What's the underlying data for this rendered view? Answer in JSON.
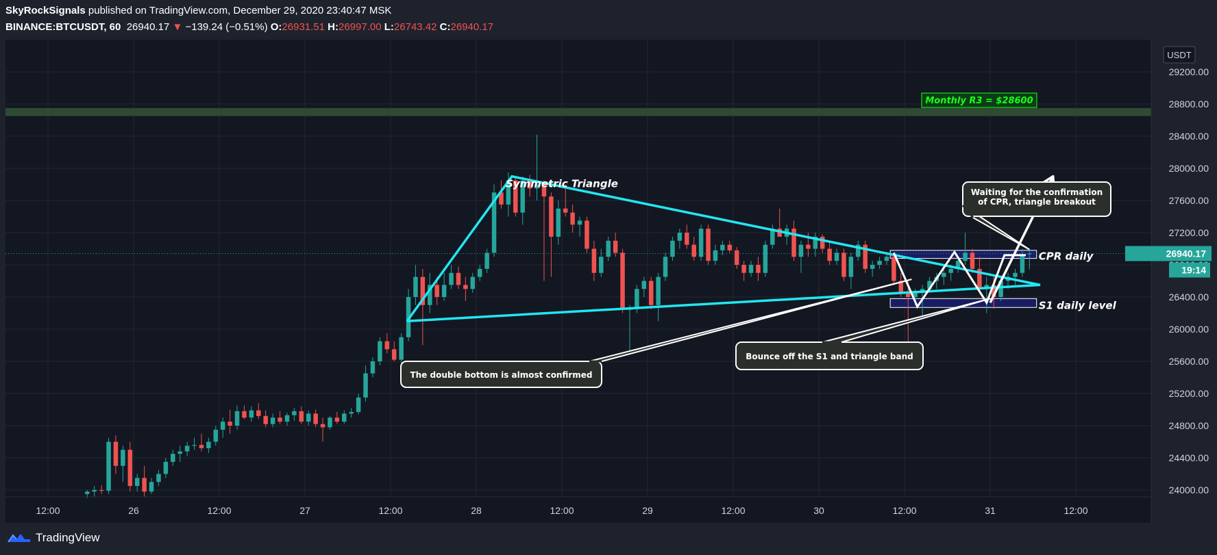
{
  "header": {
    "publisher": "SkyRockSignals",
    "published_text": "published on TradingView.com, December 29, 2020 23:40:47 MSK",
    "symbol": "BINANCE:BTCUSDT, 60",
    "last": "26940.17",
    "change_arrow": "▼",
    "change": "−139.24 (−0.51%)",
    "o_label": "O:",
    "o_value": "26931.51",
    "h_label": "H:",
    "h_value": "26997.00",
    "l_label": "L:",
    "l_value": "26743.42",
    "c_label": "C:",
    "c_value": "26940.17"
  },
  "footer": {
    "brand": "TradingView"
  },
  "colors": {
    "background": "#131722",
    "frame": "#1e222d",
    "up": "#26a69a",
    "down": "#ef5350",
    "triangle": "#22e6f0",
    "band": "#2e4a33",
    "box": "#1a1f6e",
    "annotation_white": "#ffffff",
    "green_label": "#19ff19"
  },
  "chart_data": {
    "type": "candlestick",
    "currency_label": "USDT",
    "x_ticks": [
      "12:00",
      "26",
      "12:00",
      "27",
      "12:00",
      "28",
      "12:00",
      "29",
      "12:00",
      "30",
      "12:00",
      "31",
      "12:00"
    ],
    "y_ticks": [
      "24000.00",
      "24400.00",
      "24800.00",
      "25200.00",
      "25600.00",
      "26000.00",
      "26400.00",
      "26800.00",
      "27200.00",
      "27600.00",
      "28000.00",
      "28400.00",
      "28800.00",
      "29200.00"
    ],
    "ylim": [
      23900,
      29500
    ],
    "x_range_hours": [
      0,
      144
    ],
    "last_price": {
      "value": 26940.17,
      "label": "26940.17",
      "countdown": "19:14"
    },
    "candles": [
      {
        "t": 5.5,
        "o": 23950,
        "h": 24000,
        "l": 23900,
        "c": 23980
      },
      {
        "t": 6.5,
        "o": 23980,
        "h": 24050,
        "l": 23920,
        "c": 24000
      },
      {
        "t": 7.5,
        "o": 24000,
        "h": 24060,
        "l": 23950,
        "c": 23990
      },
      {
        "t": 8.5,
        "o": 23990,
        "h": 24650,
        "l": 23950,
        "c": 24600
      },
      {
        "t": 9.5,
        "o": 24600,
        "h": 24680,
        "l": 24200,
        "c": 24300
      },
      {
        "t": 10.5,
        "o": 24300,
        "h": 24550,
        "l": 24100,
        "c": 24500
      },
      {
        "t": 11.5,
        "o": 24500,
        "h": 24600,
        "l": 23980,
        "c": 24050
      },
      {
        "t": 12.5,
        "o": 24050,
        "h": 24200,
        "l": 23980,
        "c": 24150
      },
      {
        "t": 13.5,
        "o": 24150,
        "h": 24300,
        "l": 23920,
        "c": 23980
      },
      {
        "t": 14.5,
        "o": 23980,
        "h": 24150,
        "l": 23950,
        "c": 24100
      },
      {
        "t": 15.5,
        "o": 24100,
        "h": 24250,
        "l": 24050,
        "c": 24200
      },
      {
        "t": 16.5,
        "o": 24200,
        "h": 24400,
        "l": 24150,
        "c": 24350
      },
      {
        "t": 17.5,
        "o": 24350,
        "h": 24500,
        "l": 24300,
        "c": 24450
      },
      {
        "t": 18.5,
        "o": 24450,
        "h": 24550,
        "l": 24350,
        "c": 24480
      },
      {
        "t": 19.5,
        "o": 24480,
        "h": 24600,
        "l": 24420,
        "c": 24550
      },
      {
        "t": 20.5,
        "o": 24550,
        "h": 24650,
        "l": 24500,
        "c": 24560
      },
      {
        "t": 21.5,
        "o": 24560,
        "h": 24700,
        "l": 24480,
        "c": 24520
      },
      {
        "t": 22.5,
        "o": 24520,
        "h": 24650,
        "l": 24460,
        "c": 24600
      },
      {
        "t": 23.5,
        "o": 24600,
        "h": 24800,
        "l": 24550,
        "c": 24750
      },
      {
        "t": 24.5,
        "o": 24750,
        "h": 24900,
        "l": 24650,
        "c": 24850
      },
      {
        "t": 25.5,
        "o": 24850,
        "h": 25000,
        "l": 24700,
        "c": 24800
      },
      {
        "t": 26.5,
        "o": 24800,
        "h": 25050,
        "l": 24750,
        "c": 24980
      },
      {
        "t": 27.5,
        "o": 24980,
        "h": 25050,
        "l": 24880,
        "c": 24900
      },
      {
        "t": 28.5,
        "o": 24900,
        "h": 25040,
        "l": 24850,
        "c": 24990
      },
      {
        "t": 29.5,
        "o": 24990,
        "h": 25080,
        "l": 24880,
        "c": 24920
      },
      {
        "t": 30.5,
        "o": 24920,
        "h": 24990,
        "l": 24780,
        "c": 24820
      },
      {
        "t": 31.5,
        "o": 24820,
        "h": 24950,
        "l": 24780,
        "c": 24900
      },
      {
        "t": 32.5,
        "o": 24900,
        "h": 24980,
        "l": 24820,
        "c": 24850
      },
      {
        "t": 33.5,
        "o": 24850,
        "h": 24960,
        "l": 24800,
        "c": 24930
      },
      {
        "t": 34.5,
        "o": 24930,
        "h": 25020,
        "l": 24860,
        "c": 24980
      },
      {
        "t": 35.5,
        "o": 24980,
        "h": 25040,
        "l": 24820,
        "c": 24850
      },
      {
        "t": 36.5,
        "o": 24850,
        "h": 24990,
        "l": 24800,
        "c": 24950
      },
      {
        "t": 37.5,
        "o": 24950,
        "h": 25000,
        "l": 24780,
        "c": 24820
      },
      {
        "t": 38.5,
        "o": 24820,
        "h": 24900,
        "l": 24600,
        "c": 24780
      },
      {
        "t": 39.5,
        "o": 24780,
        "h": 24920,
        "l": 24750,
        "c": 24900
      },
      {
        "t": 40.5,
        "o": 24900,
        "h": 24970,
        "l": 24820,
        "c": 24850
      },
      {
        "t": 41.5,
        "o": 24850,
        "h": 24990,
        "l": 24820,
        "c": 24950
      },
      {
        "t": 42.5,
        "o": 24950,
        "h": 25020,
        "l": 24900,
        "c": 24970
      },
      {
        "t": 43.5,
        "o": 24970,
        "h": 25200,
        "l": 24940,
        "c": 25150
      },
      {
        "t": 44.5,
        "o": 25150,
        "h": 25550,
        "l": 25100,
        "c": 25450
      },
      {
        "t": 45.5,
        "o": 25450,
        "h": 25650,
        "l": 25400,
        "c": 25600
      },
      {
        "t": 46.5,
        "o": 25600,
        "h": 25900,
        "l": 25550,
        "c": 25850
      },
      {
        "t": 47.5,
        "o": 25850,
        "h": 25950,
        "l": 25700,
        "c": 25750
      },
      {
        "t": 48.5,
        "o": 25750,
        "h": 25850,
        "l": 25600,
        "c": 25620
      },
      {
        "t": 49.5,
        "o": 25620,
        "h": 25950,
        "l": 25580,
        "c": 25900
      },
      {
        "t": 50.5,
        "o": 25900,
        "h": 26500,
        "l": 25850,
        "c": 26400
      },
      {
        "t": 51.5,
        "o": 26400,
        "h": 26800,
        "l": 26300,
        "c": 26650
      },
      {
        "t": 52.5,
        "o": 26650,
        "h": 26750,
        "l": 25800,
        "c": 26300
      },
      {
        "t": 53.5,
        "o": 26300,
        "h": 26700,
        "l": 26200,
        "c": 26550
      },
      {
        "t": 54.5,
        "o": 26550,
        "h": 26650,
        "l": 26300,
        "c": 26400
      },
      {
        "t": 55.5,
        "o": 26400,
        "h": 26700,
        "l": 26350,
        "c": 26550
      },
      {
        "t": 56.5,
        "o": 26550,
        "h": 26800,
        "l": 26500,
        "c": 26700
      },
      {
        "t": 57.5,
        "o": 26700,
        "h": 26780,
        "l": 26500,
        "c": 26550
      },
      {
        "t": 58.5,
        "o": 26550,
        "h": 26650,
        "l": 26350,
        "c": 26500
      },
      {
        "t": 59.5,
        "o": 26500,
        "h": 26700,
        "l": 26450,
        "c": 26650
      },
      {
        "t": 60.5,
        "o": 26650,
        "h": 26800,
        "l": 26600,
        "c": 26750
      },
      {
        "t": 61.5,
        "o": 26750,
        "h": 27000,
        "l": 26700,
        "c": 26950
      },
      {
        "t": 62.5,
        "o": 26950,
        "h": 27800,
        "l": 26900,
        "c": 27700
      },
      {
        "t": 63.5,
        "o": 27700,
        "h": 27850,
        "l": 27500,
        "c": 27550
      },
      {
        "t": 64.5,
        "o": 27550,
        "h": 27950,
        "l": 27400,
        "c": 27850
      },
      {
        "t": 65.5,
        "o": 27850,
        "h": 27900,
        "l": 27400,
        "c": 27450
      },
      {
        "t": 66.5,
        "o": 27450,
        "h": 27900,
        "l": 27300,
        "c": 27850
      },
      {
        "t": 67.5,
        "o": 27850,
        "h": 27920,
        "l": 27650,
        "c": 27750
      },
      {
        "t": 68.5,
        "o": 27750,
        "h": 28420,
        "l": 27600,
        "c": 27800
      },
      {
        "t": 69.5,
        "o": 27800,
        "h": 27850,
        "l": 26600,
        "c": 27650
      },
      {
        "t": 70.5,
        "o": 27650,
        "h": 27700,
        "l": 26650,
        "c": 27150
      },
      {
        "t": 71.5,
        "o": 27150,
        "h": 27600,
        "l": 27050,
        "c": 27500
      },
      {
        "t": 72.5,
        "o": 27500,
        "h": 27800,
        "l": 27400,
        "c": 27450
      },
      {
        "t": 73.5,
        "o": 27450,
        "h": 27550,
        "l": 27200,
        "c": 27300
      },
      {
        "t": 74.5,
        "o": 27300,
        "h": 27400,
        "l": 27150,
        "c": 27350
      },
      {
        "t": 75.5,
        "o": 27350,
        "h": 27400,
        "l": 26950,
        "c": 27000
      },
      {
        "t": 76.5,
        "o": 27000,
        "h": 27100,
        "l": 26600,
        "c": 26700
      },
      {
        "t": 77.5,
        "o": 26700,
        "h": 27000,
        "l": 26650,
        "c": 26900
      },
      {
        "t": 78.5,
        "o": 26900,
        "h": 27150,
        "l": 26850,
        "c": 27100
      },
      {
        "t": 79.5,
        "o": 27100,
        "h": 27200,
        "l": 26900,
        "c": 26950
      },
      {
        "t": 80.5,
        "o": 26950,
        "h": 27000,
        "l": 26200,
        "c": 26250
      },
      {
        "t": 81.5,
        "o": 26250,
        "h": 26300,
        "l": 25700,
        "c": 26250
      },
      {
        "t": 82.5,
        "o": 26250,
        "h": 26550,
        "l": 26200,
        "c": 26500
      },
      {
        "t": 83.5,
        "o": 26500,
        "h": 26650,
        "l": 26400,
        "c": 26600
      },
      {
        "t": 84.5,
        "o": 26600,
        "h": 26650,
        "l": 26250,
        "c": 26300
      },
      {
        "t": 85.5,
        "o": 26300,
        "h": 26700,
        "l": 26100,
        "c": 26650
      },
      {
        "t": 86.5,
        "o": 26650,
        "h": 26950,
        "l": 26600,
        "c": 26900
      },
      {
        "t": 87.5,
        "o": 26900,
        "h": 27150,
        "l": 26850,
        "c": 27100
      },
      {
        "t": 88.5,
        "o": 27100,
        "h": 27250,
        "l": 27000,
        "c": 27200
      },
      {
        "t": 89.5,
        "o": 27200,
        "h": 27300,
        "l": 27000,
        "c": 27050
      },
      {
        "t": 90.5,
        "o": 27050,
        "h": 27150,
        "l": 26850,
        "c": 26900
      },
      {
        "t": 91.5,
        "o": 26900,
        "h": 27300,
        "l": 26850,
        "c": 27250
      },
      {
        "t": 92.5,
        "o": 27250,
        "h": 27300,
        "l": 26800,
        "c": 26850
      },
      {
        "t": 93.5,
        "o": 26850,
        "h": 27050,
        "l": 26800,
        "c": 26980
      },
      {
        "t": 94.5,
        "o": 26980,
        "h": 27100,
        "l": 26920,
        "c": 27050
      },
      {
        "t": 95.5,
        "o": 27050,
        "h": 27100,
        "l": 26950,
        "c": 26980
      },
      {
        "t": 96.5,
        "o": 26980,
        "h": 27020,
        "l": 26750,
        "c": 26800
      },
      {
        "t": 97.5,
        "o": 26800,
        "h": 26850,
        "l": 26600,
        "c": 26700
      },
      {
        "t": 98.5,
        "o": 26700,
        "h": 26850,
        "l": 26650,
        "c": 26800
      },
      {
        "t": 99.5,
        "o": 26800,
        "h": 26900,
        "l": 26600,
        "c": 26700
      },
      {
        "t": 100.5,
        "o": 26700,
        "h": 27100,
        "l": 26650,
        "c": 27050
      },
      {
        "t": 101.5,
        "o": 27050,
        "h": 27300,
        "l": 27000,
        "c": 27250
      },
      {
        "t": 102.5,
        "o": 27250,
        "h": 27500,
        "l": 27150,
        "c": 27150
      },
      {
        "t": 103.5,
        "o": 27150,
        "h": 27300,
        "l": 27050,
        "c": 27250
      },
      {
        "t": 104.5,
        "o": 27250,
        "h": 27350,
        "l": 26850,
        "c": 26900
      },
      {
        "t": 105.5,
        "o": 26900,
        "h": 27100,
        "l": 26700,
        "c": 27050
      },
      {
        "t": 106.5,
        "o": 27050,
        "h": 27200,
        "l": 26900,
        "c": 27000
      },
      {
        "t": 107.5,
        "o": 27000,
        "h": 27200,
        "l": 26900,
        "c": 27150
      },
      {
        "t": 108.5,
        "o": 27150,
        "h": 27180,
        "l": 26950,
        "c": 27000
      },
      {
        "t": 109.5,
        "o": 27000,
        "h": 27100,
        "l": 26800,
        "c": 26850
      },
      {
        "t": 110.5,
        "o": 26850,
        "h": 27000,
        "l": 26800,
        "c": 26950
      },
      {
        "t": 111.5,
        "o": 26950,
        "h": 27000,
        "l": 26600,
        "c": 26650
      },
      {
        "t": 112.5,
        "o": 26650,
        "h": 26950,
        "l": 26500,
        "c": 26900
      },
      {
        "t": 113.5,
        "o": 26900,
        "h": 27100,
        "l": 26850,
        "c": 27050
      },
      {
        "t": 114.5,
        "o": 27050,
        "h": 27100,
        "l": 26700,
        "c": 26750
      },
      {
        "t": 115.5,
        "o": 26750,
        "h": 26850,
        "l": 26650,
        "c": 26800
      },
      {
        "t": 116.5,
        "o": 26800,
        "h": 26900,
        "l": 26750,
        "c": 26850
      },
      {
        "t": 117.5,
        "o": 26850,
        "h": 26950,
        "l": 26800,
        "c": 26900
      },
      {
        "t": 118.5,
        "o": 26900,
        "h": 26920,
        "l": 26550,
        "c": 26600
      },
      {
        "t": 119.5,
        "o": 26600,
        "h": 26700,
        "l": 26400,
        "c": 26450
      },
      {
        "t": 120.5,
        "o": 26450,
        "h": 26600,
        "l": 25850,
        "c": 26400
      },
      {
        "t": 121.5,
        "o": 26400,
        "h": 26500,
        "l": 26300,
        "c": 26450
      },
      {
        "t": 122.5,
        "o": 26450,
        "h": 26550,
        "l": 26150,
        "c": 26500
      },
      {
        "t": 123.5,
        "o": 26500,
        "h": 26650,
        "l": 26450,
        "c": 26600
      },
      {
        "t": 124.5,
        "o": 26600,
        "h": 26700,
        "l": 26500,
        "c": 26650
      },
      {
        "t": 125.5,
        "o": 26650,
        "h": 26750,
        "l": 26550,
        "c": 26700
      },
      {
        "t": 126.5,
        "o": 26700,
        "h": 26800,
        "l": 26600,
        "c": 26750
      },
      {
        "t": 127.5,
        "o": 26750,
        "h": 26900,
        "l": 26700,
        "c": 26850
      },
      {
        "t": 128.5,
        "o": 26850,
        "h": 27200,
        "l": 26800,
        "c": 26950
      },
      {
        "t": 129.5,
        "o": 26950,
        "h": 27000,
        "l": 26700,
        "c": 26750
      },
      {
        "t": 130.5,
        "o": 26750,
        "h": 26900,
        "l": 26450,
        "c": 26500
      },
      {
        "t": 131.5,
        "o": 26500,
        "h": 26650,
        "l": 26200,
        "c": 26550
      },
      {
        "t": 132.5,
        "o": 26550,
        "h": 26650,
        "l": 26250,
        "c": 26400
      },
      {
        "t": 133.5,
        "o": 26400,
        "h": 26650,
        "l": 26350,
        "c": 26600
      },
      {
        "t": 134.5,
        "o": 26600,
        "h": 26700,
        "l": 26500,
        "c": 26650
      },
      {
        "t": 135.5,
        "o": 26650,
        "h": 26750,
        "l": 26550,
        "c": 26700
      },
      {
        "t": 136.5,
        "o": 26700,
        "h": 27000,
        "l": 26650,
        "c": 26931
      },
      {
        "t": 137.5,
        "o": 26931,
        "h": 26997,
        "l": 26743,
        "c": 26940
      }
    ],
    "levels": {
      "monthly_r3": {
        "value": 28600,
        "band": [
          28650,
          28750
        ],
        "label": "Monthly R3 = $28600"
      },
      "cpr_daily": {
        "low": 26880,
        "high": 26980,
        "t_start": 118,
        "t_end": 138.5,
        "label": "CPR daily"
      },
      "s1_daily": {
        "low": 26270,
        "high": 26380,
        "t_start": 118,
        "t_end": 138.5,
        "label": "S1 daily level"
      }
    },
    "triangle": {
      "label": "Symmetric Triangle",
      "points": [
        {
          "t": 50.3,
          "p": 26100
        },
        {
          "t": 65.0,
          "p": 27900
        },
        {
          "t": 139.0,
          "p": 26550
        },
        {
          "t": 50.3,
          "p": 26100
        }
      ]
    },
    "pattern_path": [
      {
        "t": 118.5,
        "p": 26950
      },
      {
        "t": 121.8,
        "p": 26280
      },
      {
        "t": 127.0,
        "p": 26960
      },
      {
        "t": 131.5,
        "p": 26330
      },
      {
        "t": 134.0,
        "p": 26920
      },
      {
        "t": 137.0,
        "p": 26920
      }
    ],
    "breakout_arrow": [
      {
        "t": 132.0,
        "p": 26330
      },
      {
        "t": 140.8,
        "p": 27900
      }
    ],
    "annotations": [
      {
        "text": "The double bottom is almost confirmed",
        "anchor": {
          "t": 121.0,
          "p": 26620
        }
      },
      {
        "text": "Bounce off the S1 and triangle band",
        "anchor": {
          "t": 132.0,
          "p": 26380
        }
      },
      {
        "text": "Waiting for the confirmation",
        "text2": "of CPR,  triangle breakout",
        "anchor": {
          "t": 137.5,
          "p": 26990
        }
      }
    ]
  }
}
